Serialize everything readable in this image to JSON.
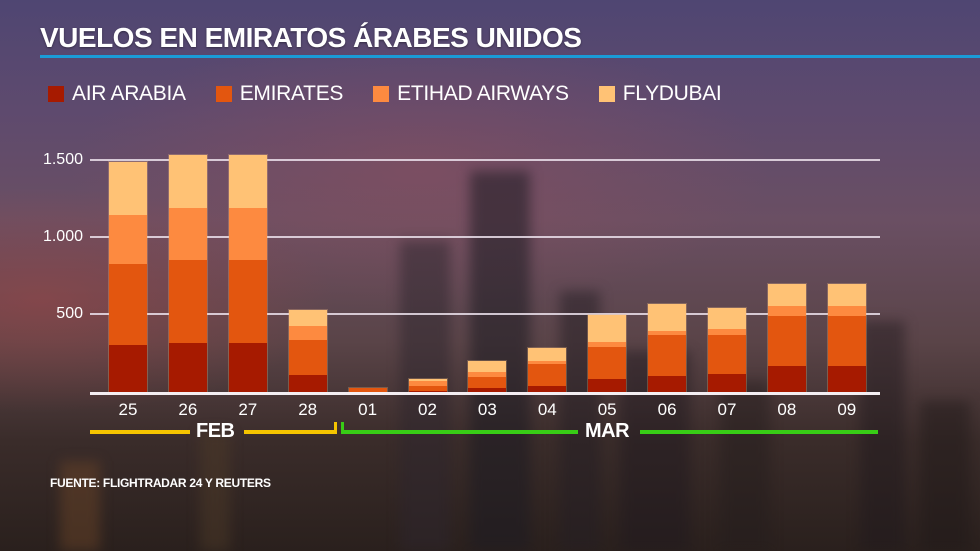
{
  "title": "VUELOS EN EMIRATOS ÁRABES UNIDOS",
  "source": "FUENTE: FLIGHTRADAR 24 Y REUTERS",
  "colors": {
    "air_arabia": "#a61a00",
    "emirates": "#e3560f",
    "etihad": "#fd8a40",
    "flydubai": "#ffc275",
    "title_rule": "#1a9bd7",
    "feb": "#f5c400",
    "mar": "#38cc16"
  },
  "legend": [
    {
      "label": "AIR ARABIA",
      "color": "#a61a00"
    },
    {
      "label": "EMIRATES",
      "color": "#e3560f"
    },
    {
      "label": "ETIHAD AIRWAYS",
      "color": "#fd8a40"
    },
    {
      "label": "FLYDUBAI",
      "color": "#ffc275"
    }
  ],
  "y_axis": {
    "ticks": [
      "1.500",
      "1.000",
      "500"
    ]
  },
  "x_axis": {
    "ticks": [
      "25",
      "26",
      "27",
      "28",
      "01",
      "02",
      "03",
      "04",
      "05",
      "06",
      "07",
      "08",
      "09"
    ],
    "months": [
      {
        "label": "FEB"
      },
      {
        "label": "MAR"
      }
    ]
  },
  "chart_data": {
    "type": "bar",
    "stacked": true,
    "title": "VUELOS EN EMIRATOS ÁRABES UNIDOS",
    "xlabel": "",
    "ylabel": "",
    "ylim": [
      0,
      1500
    ],
    "grid": true,
    "legend_position": "top",
    "categories": [
      "25 FEB",
      "26 FEB",
      "27 FEB",
      "28 FEB",
      "01 MAR",
      "02 MAR",
      "03 MAR",
      "04 MAR",
      "05 MAR",
      "06 MAR",
      "07 MAR",
      "08 MAR",
      "09 MAR"
    ],
    "series": [
      {
        "name": "AIR ARABIA",
        "values": [
          305,
          318,
          318,
          113,
          0,
          5,
          28,
          39,
          82,
          104,
          115,
          169,
          169
        ]
      },
      {
        "name": "EMIRATES",
        "values": [
          525,
          536,
          536,
          225,
          25,
          35,
          70,
          141,
          211,
          262,
          251,
          325,
          325
        ]
      },
      {
        "name": "ETIHAD AIRWAYS",
        "values": [
          318,
          336,
          336,
          91,
          0,
          32,
          30,
          21,
          32,
          30,
          43,
          65,
          65
        ]
      },
      {
        "name": "FLYDUBAI",
        "values": [
          342,
          346,
          340,
          104,
          0,
          15,
          71,
          86,
          173,
          173,
          134,
          141,
          141
        ]
      }
    ],
    "annotation": "FUENTE: FLIGHTRADAR 24 Y REUTERS"
  }
}
